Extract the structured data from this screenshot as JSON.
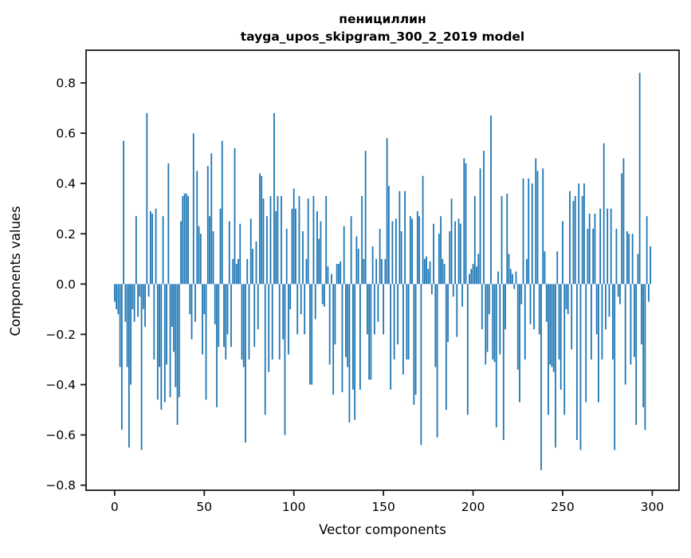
{
  "chart_data": {
    "type": "bar",
    "title": "пенициллин",
    "subtitle": "tayga_upos_skipgram_300_2_2019 model",
    "xlabel": "Vector components",
    "ylabel": "Components values",
    "bar_color": "#1f77b4",
    "spine_color": "#1a1a1a",
    "background_color": "#ffffff",
    "grid": false,
    "legend": null,
    "x_ticks": [
      0,
      50,
      100,
      150,
      200,
      250,
      300
    ],
    "y_ticks": [
      -0.8,
      -0.6,
      -0.4,
      -0.2,
      0.0,
      0.2,
      0.4,
      0.6,
      0.8
    ],
    "y_tick_labels": [
      "−0.8",
      "−0.6",
      "−0.4",
      "−0.2",
      "0.0",
      "0.2",
      "0.4",
      "0.6",
      "0.8"
    ],
    "xlim": [
      -15.95,
      314.95
    ],
    "ylim": [
      -0.82,
      0.93
    ],
    "n_components": 300,
    "values": [
      -0.07,
      -0.1,
      -0.12,
      -0.33,
      -0.58,
      0.57,
      -0.15,
      -0.33,
      -0.65,
      -0.4,
      -0.1,
      -0.15,
      0.27,
      -0.13,
      -0.05,
      -0.66,
      -0.1,
      -0.17,
      0.68,
      -0.05,
      0.29,
      0.28,
      -0.3,
      0.3,
      -0.46,
      -0.33,
      -0.5,
      0.27,
      -0.47,
      -0.32,
      0.48,
      -0.45,
      -0.17,
      -0.27,
      -0.41,
      -0.56,
      -0.45,
      0.25,
      0.35,
      0.36,
      0.36,
      0.35,
      -0.12,
      -0.22,
      0.6,
      -0.15,
      0.45,
      0.23,
      0.2,
      -0.28,
      -0.12,
      -0.46,
      0.47,
      0.27,
      0.52,
      0.21,
      -0.16,
      -0.49,
      -0.25,
      0.3,
      0.57,
      -0.25,
      -0.3,
      -0.2,
      0.25,
      -0.25,
      0.1,
      0.54,
      0.08,
      0.1,
      0.24,
      -0.3,
      -0.33,
      -0.63,
      0.1,
      -0.3,
      0.26,
      0.14,
      -0.25,
      0.17,
      -0.18,
      0.44,
      0.43,
      0.34,
      -0.52,
      0.27,
      -0.35,
      0.35,
      -0.3,
      0.68,
      0.29,
      0.35,
      -0.3,
      0.35,
      -0.22,
      -0.6,
      0.22,
      -0.28,
      -0.1,
      0.3,
      0.38,
      0.3,
      -0.2,
      0.35,
      -0.12,
      0.21,
      -0.2,
      0.1,
      0.34,
      -0.4,
      -0.4,
      0.35,
      -0.14,
      0.29,
      0.18,
      0.25,
      -0.08,
      -0.09,
      0.35,
      0.07,
      -0.32,
      0.04,
      -0.44,
      -0.24,
      0.08,
      0.08,
      0.09,
      -0.43,
      0.23,
      -0.29,
      -0.33,
      -0.55,
      0.27,
      -0.42,
      -0.54,
      0.19,
      0.14,
      -0.42,
      0.35,
      0.1,
      0.53,
      -0.2,
      -0.38,
      -0.38,
      0.15,
      -0.2,
      0.1,
      -0.15,
      0.22,
      0.1,
      -0.2,
      0.1,
      0.58,
      0.39,
      -0.42,
      0.25,
      -0.3,
      0.26,
      -0.24,
      0.37,
      0.21,
      -0.36,
      0.37,
      -0.3,
      -0.3,
      0.27,
      0.26,
      -0.48,
      -0.44,
      0.29,
      0.27,
      -0.64,
      0.43,
      0.1,
      0.11,
      0.06,
      0.09,
      -0.04,
      0.24,
      -0.33,
      -0.61,
      0.2,
      0.27,
      0.1,
      0.08,
      -0.5,
      -0.23,
      0.21,
      0.34,
      -0.05,
      0.25,
      -0.21,
      0.26,
      0.24,
      -0.09,
      0.5,
      0.48,
      -0.52,
      0.04,
      0.06,
      0.08,
      0.35,
      0.07,
      0.12,
      0.46,
      -0.18,
      0.53,
      -0.32,
      -0.27,
      -0.12,
      0.67,
      -0.3,
      -0.31,
      -0.57,
      0.05,
      -0.28,
      0.35,
      -0.62,
      -0.18,
      0.36,
      0.12,
      0.06,
      0.04,
      -0.02,
      0.05,
      -0.34,
      -0.47,
      -0.08,
      0.42,
      -0.3,
      0.1,
      0.42,
      -0.16,
      0.4,
      -0.18,
      0.5,
      0.45,
      -0.2,
      -0.74,
      0.46,
      0.13,
      -0.15,
      -0.52,
      -0.32,
      -0.33,
      -0.35,
      -0.65,
      0.13,
      -0.3,
      -0.42,
      0.25,
      -0.52,
      -0.1,
      -0.12,
      0.37,
      -0.26,
      0.33,
      0.35,
      -0.62,
      0.4,
      -0.66,
      0.35,
      0.4,
      -0.47,
      0.22,
      0.28,
      -0.3,
      0.22,
      0.28,
      -0.2,
      -0.47,
      0.3,
      -0.3,
      0.56,
      -0.18,
      0.3,
      -0.13,
      0.3,
      -0.3,
      -0.66,
      0.22,
      -0.05,
      -0.08,
      0.44,
      0.5,
      -0.4,
      0.21,
      0.2,
      -0.32,
      0.2,
      -0.29,
      -0.56,
      0.12,
      0.84,
      -0.24,
      -0.49,
      -0.58,
      0.27,
      -0.07,
      0.15
    ]
  }
}
